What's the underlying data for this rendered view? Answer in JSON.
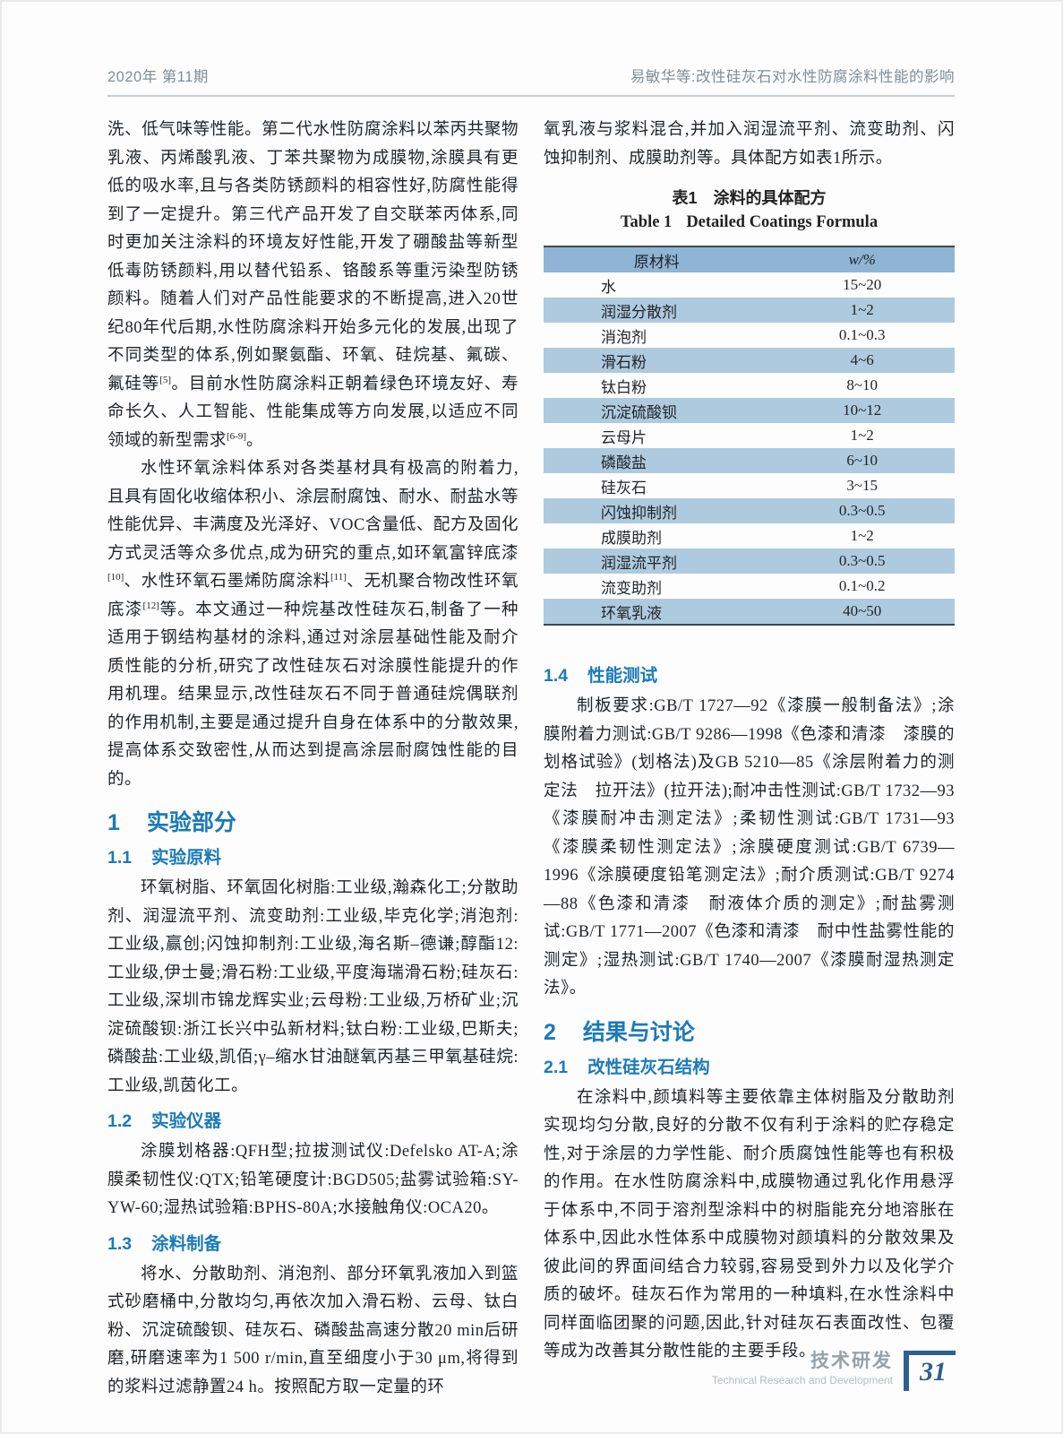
{
  "header": {
    "issue": "2020年  第11期",
    "running_title": "易敏华等:改性硅灰石对水性防腐涂料性能的影响"
  },
  "left_column": {
    "p1": "洗、低气味等性能。第二代水性防腐涂料以苯丙共聚物乳液、丙烯酸乳液、丁苯共聚物为成膜物,涂膜具有更低的吸水率,且与各类防锈颜料的相容性好,防腐性能得到了一定提升。第三代产品开发了自交联苯丙体系,同时更加关注涂料的环境友好性能,开发了硼酸盐等新型低毒防锈颜料,用以替代铅系、铬酸系等重污染型防锈颜料。随着人们对产品性能要求的不断提高,进入20世纪80年代后期,水性防腐涂料开始多元化的发展,出现了不同类型的体系,例如聚氨酯、环氧、硅烷基、氟碳、氟硅等^[5]。目前水性防腐涂料正朝着绿色环境友好、寿命长久、人工智能、性能集成等方向发展,以适应不同领域的新型需求^[6-9]。",
    "p2": "水性环氧涂料体系对各类基材具有极高的附着力,且具有固化收缩体积小、涂层耐腐蚀、耐水、耐盐水等性能优异、丰满度及光泽好、VOC含量低、配方及固化方式灵活等众多优点,成为研究的重点,如环氧富锌底漆^[10]、水性环氧石墨烯防腐涂料^[11]、无机聚合物改性环氧底漆^[12]等。本文通过一种烷基改性硅灰石,制备了一种适用于钢结构基材的涂料,通过对涂层基础性能及耐介质性能的分析,研究了改性硅灰石对涂膜性能提升的作用机理。结果显示,改性硅灰石不同于普通硅烷偶联剂的作用机制,主要是通过提升自身在体系中的分散效果,提高体系交致密性,从而达到提高涂层耐腐蚀性能的目的。",
    "h1": {
      "num": "1",
      "title": "实验部分"
    },
    "h11": {
      "num": "1.1",
      "title": "实验原料"
    },
    "p3": "环氧树脂、环氧固化树脂:工业级,瀚森化工;分散助剂、润湿流平剂、流变助剂:工业级,毕克化学;消泡剂:工业级,赢创;闪蚀抑制剂:工业级,海名斯–德谦;醇酯12:工业级,伊士曼;滑石粉:工业级,平度海瑞滑石粉;硅灰石:工业级,深圳市锦龙辉实业;云母粉:工业级,万桥矿业;沉淀硫酸钡:浙江长兴中弘新材料;钛白粉:工业级,巴斯夫;磷酸盐:工业级,凯佰;γ–缩水甘油醚氧丙基三甲氧基硅烷:工业级,凯茵化工。",
    "h12": {
      "num": "1.2",
      "title": "实验仪器"
    },
    "p4": "涂膜划格器:QFH型;拉拔测试仪:Defelsko AT-A;涂膜柔韧性仪:QTX;铅笔硬度计:BGD505;盐雾试验箱:SY-YW-60;湿热试验箱:BPHS-80A;水接触角仪:OCA20。",
    "h13": {
      "num": "1.3",
      "title": "涂料制备"
    },
    "p5": "将水、分散助剂、消泡剂、部分环氧乳液加入到篮式砂磨桶中,分散均匀,再依次加入滑石粉、云母、钛白粉、沉淀硫酸钡、硅灰石、磷酸盐高速分散20 min后研磨,研磨速率为1 500 r/min,直至细度小于30 μm,将得到的浆料过滤静置24 h。按照配方取一定量的环"
  },
  "right_column": {
    "p1": "氧乳液与浆料混合,并加入润湿流平剂、流变助剂、闪蚀抑制剂、成膜助剂等。具体配方如表1所示。",
    "table": {
      "caption_zh_label": "表1",
      "caption_zh_title": "涂料的具体配方",
      "caption_en_label": "Table 1",
      "caption_en_title": "Detailed Coatings Formula",
      "headers": [
        "原材料",
        "w/%"
      ],
      "rows": [
        [
          "水",
          "15~20"
        ],
        [
          "润湿分散剂",
          "1~2"
        ],
        [
          "消泡剂",
          "0.1~0.3"
        ],
        [
          "滑石粉",
          "4~6"
        ],
        [
          "钛白粉",
          "8~10"
        ],
        [
          "沉淀硫酸钡",
          "10~12"
        ],
        [
          "云母片",
          "1~2"
        ],
        [
          "磷酸盐",
          "6~10"
        ],
        [
          "硅灰石",
          "3~15"
        ],
        [
          "闪蚀抑制剂",
          "0.3~0.5"
        ],
        [
          "成膜助剂",
          "1~2"
        ],
        [
          "润湿流平剂",
          "0.3~0.5"
        ],
        [
          "流变助剂",
          "0.1~0.2"
        ],
        [
          "环氧乳液",
          "40~50"
        ]
      ]
    },
    "h14": {
      "num": "1.4",
      "title": "性能测试"
    },
    "p2": "制板要求:GB/T 1727—92《漆膜一般制备法》;涂膜附着力测试:GB/T 9286—1998《色漆和清漆　漆膜的划格试验》(划格法)及GB 5210—85《涂层附着力的测定法　拉开法》(拉开法);耐冲击性测试:GB/T 1732—93《漆膜耐冲击测定法》;柔韧性测试:GB/T 1731—93《漆膜柔韧性测定法》;涂膜硬度测试:GB/T 6739—1996《涂膜硬度铅笔测定法》;耐介质测试:GB/T 9274—88《色漆和清漆　耐液体介质的测定》;耐盐雾测试:GB/T 1771—2007《色漆和清漆　耐中性盐雾性能的测定》;湿热测试:GB/T 1740—2007《漆膜耐湿热测定法》。",
    "h2": {
      "num": "2",
      "title": "结果与讨论"
    },
    "h21": {
      "num": "2.1",
      "title": "改性硅灰石结构"
    },
    "p3": "在涂料中,颜填料等主要依靠主体树脂及分散助剂实现均匀分散,良好的分散不仅有利于涂料的贮存稳定性,对于涂层的力学性能、耐介质腐蚀性能等也有积极的作用。在水性防腐涂料中,成膜物通过乳化作用悬浮于体系中,不同于溶剂型涂料中的树脂能充分地溶胀在体系中,因此水性体系中成膜物对颜填料的分散效果及彼此间的界面间结合力较弱,容易受到外力以及化学介质的破坏。硅灰石作为常用的一种填料,在水性涂料中同样面临团聚的问题,因此,针对硅灰石表面改性、包覆等成为改善其分散性能的主要手段。"
  },
  "footer": {
    "section_zh": "技术研发",
    "section_en": "Technical Research and Development",
    "page": "31"
  },
  "colors": {
    "heading_blue": "#1b7ab8",
    "table_header_bg": "#8fb4d4",
    "table_stripe_bg": "#aecadf",
    "footer_accent_blue": "#2e5f8f",
    "header_gray": "#808d96"
  }
}
